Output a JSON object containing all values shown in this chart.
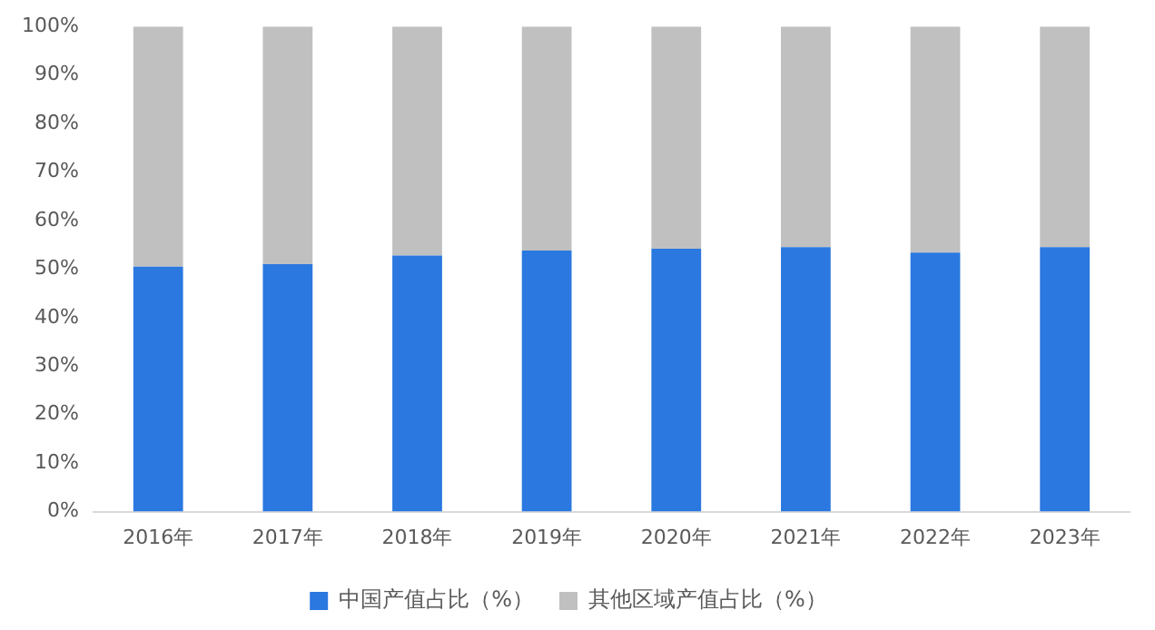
{
  "chart_data": {
    "type": "bar",
    "stacked": true,
    "categories": [
      "2016年",
      "2017年",
      "2018年",
      "2019年",
      "2020年",
      "2021年",
      "2022年",
      "2023年"
    ],
    "series": [
      {
        "name": "中国产值占比（%）",
        "color": "#2a78e0",
        "values": [
          50.5,
          51,
          52.8,
          53.8,
          54.2,
          54.5,
          53.4,
          54.5
        ]
      },
      {
        "name": "其他区域产值占比（%）",
        "color": "#c0c0c0",
        "values": [
          49.5,
          49,
          47.2,
          46.2,
          45.8,
          45.5,
          46.6,
          45.5
        ]
      }
    ],
    "ylim": [
      0,
      100
    ],
    "yticks": [
      {
        "value": 0,
        "label": "0%"
      },
      {
        "value": 10,
        "label": "10%"
      },
      {
        "value": 20,
        "label": "20%"
      },
      {
        "value": 30,
        "label": "30%"
      },
      {
        "value": 40,
        "label": "40%"
      },
      {
        "value": 50,
        "label": "50%"
      },
      {
        "value": 60,
        "label": "60%"
      },
      {
        "value": 70,
        "label": "70%"
      },
      {
        "value": 80,
        "label": "80%"
      },
      {
        "value": 90,
        "label": "90%"
      },
      {
        "value": 100,
        "label": "100%"
      }
    ],
    "grid": false,
    "legend": "bottom"
  }
}
